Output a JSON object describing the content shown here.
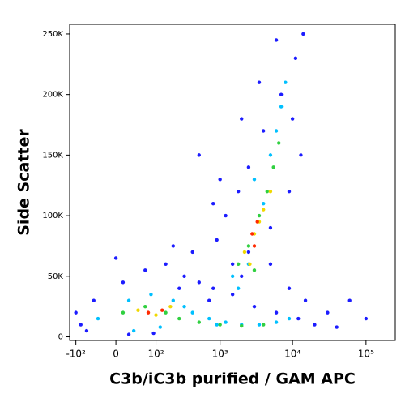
{
  "chart_data": {
    "type": "scatter",
    "xlabel": "C3b/iC3b purified / GAM APC",
    "ylabel": "Side Scatter",
    "xscale": "symlog",
    "xlinthresh": 40,
    "xlim": [
      -130,
      250000
    ],
    "xticks": [
      {
        "value": -100,
        "label": "-10²"
      },
      0,
      {
        "value": 100,
        "label": "10²"
      },
      {
        "value": 1000,
        "label": "10³"
      },
      {
        "value": 10000,
        "label": "10⁴"
      },
      {
        "value": 100000,
        "label": "10⁵"
      }
    ],
    "ylim": [
      -3000,
      258000
    ],
    "yticks": [
      0,
      {
        "value": 50000,
        "label": "50K"
      },
      {
        "value": 100000,
        "label": "100K"
      },
      {
        "value": 150000,
        "label": "150K"
      },
      {
        "value": 200000,
        "label": "200K"
      },
      {
        "value": 250000,
        "label": "250K"
      }
    ],
    "series": [
      {
        "color": "#1c1cff",
        "x": [
          -80,
          -40,
          10,
          60,
          150,
          300,
          500,
          800,
          1500,
          3000,
          6000,
          12000,
          20000,
          40000,
          -60,
          20,
          90,
          250,
          700,
          2000,
          5000,
          9000,
          15000,
          30000,
          400,
          900,
          1200,
          1800,
          2500,
          4000,
          7000,
          11000,
          14000,
          500,
          1000,
          2000,
          3500,
          6000,
          10000,
          13000,
          800,
          1500,
          2500,
          5000,
          9000,
          60000,
          100000,
          -100,
          0,
          200
        ],
        "values": [
          10000,
          30000,
          45000,
          55000,
          60000,
          50000,
          45000,
          40000,
          35000,
          25000,
          20000,
          15000,
          10000,
          8000,
          5000,
          2000,
          3000,
          40000,
          30000,
          50000,
          60000,
          40000,
          30000,
          20000,
          70000,
          80000,
          100000,
          120000,
          140000,
          170000,
          200000,
          230000,
          250000,
          150000,
          130000,
          180000,
          210000,
          245000,
          180000,
          150000,
          110000,
          60000,
          70000,
          90000,
          120000,
          30000,
          15000,
          20000,
          65000,
          75000
        ]
      },
      {
        "color": "#00c0ff",
        "x": [
          -30,
          20,
          80,
          200,
          400,
          700,
          1200,
          2000,
          3500,
          6000,
          9000,
          30,
          120,
          300,
          1500,
          2500,
          4000,
          5000,
          7000,
          8000,
          6000,
          3000,
          1800,
          900
        ],
        "values": [
          15000,
          30000,
          35000,
          30000,
          20000,
          15000,
          12000,
          10000,
          10000,
          12000,
          15000,
          5000,
          8000,
          25000,
          50000,
          60000,
          110000,
          150000,
          190000,
          210000,
          170000,
          130000,
          40000,
          10000
        ]
      },
      {
        "color": "#30d040",
        "x": [
          10,
          60,
          150,
          250,
          500,
          1000,
          2000,
          4000,
          1800,
          2500,
          3500,
          4500,
          5500,
          6500,
          3000
        ],
        "values": [
          20000,
          25000,
          20000,
          15000,
          12000,
          10000,
          9000,
          10000,
          60000,
          75000,
          100000,
          120000,
          140000,
          160000,
          55000
        ]
      },
      {
        "color": "#f0d800",
        "x": [
          40,
          100,
          180,
          2200,
          3000,
          4000,
          5000,
          2600,
          3500
        ],
        "values": [
          22000,
          18000,
          25000,
          70000,
          85000,
          105000,
          120000,
          60000,
          95000
        ]
      },
      {
        "color": "#ff2a00",
        "x": [
          70,
          130,
          2800,
          3300,
          3000
        ],
        "values": [
          20000,
          22000,
          85000,
          95000,
          75000
        ]
      }
    ]
  }
}
